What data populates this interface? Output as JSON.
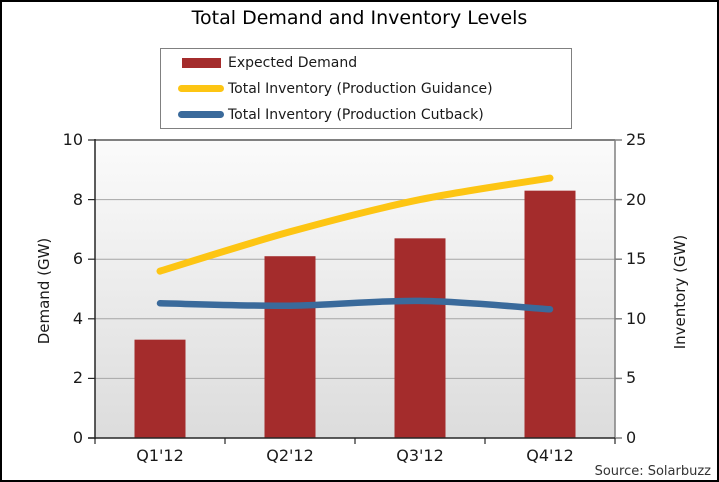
{
  "chart_data": {
    "type": "combo",
    "title": "Total Demand and Inventory Levels",
    "categories": [
      "Q1'12",
      "Q2'12",
      "Q3'12",
      "Q4'12"
    ],
    "series": [
      {
        "name": "Expected Demand",
        "type": "bar",
        "axis": "left",
        "color": "#A42C2C",
        "values": [
          3.3,
          6.1,
          6.7,
          8.3
        ]
      },
      {
        "name": "Total Inventory (Production Guidance)",
        "type": "line",
        "axis": "right",
        "color": "#FDC513",
        "values": [
          14.0,
          17.3,
          20.0,
          21.8
        ]
      },
      {
        "name": "Total Inventory (Production Cutback)",
        "type": "line",
        "axis": "right",
        "color": "#3A6A9B",
        "values": [
          11.3,
          11.1,
          11.5,
          10.8
        ]
      }
    ],
    "left_axis": {
      "label": "Demand (GW)",
      "min": 0,
      "max": 10,
      "ticks": [
        0,
        2,
        4,
        6,
        8,
        10
      ]
    },
    "right_axis": {
      "label": "Inventory (GW)",
      "min": 0,
      "max": 25,
      "ticks": [
        0,
        5,
        10,
        15,
        20,
        25
      ]
    },
    "legend_position": "top",
    "grid": true,
    "source": "Source: Solarbuzz",
    "colors": {
      "gridline": "#A6A6A6",
      "plot_border": "#808080",
      "axis_line": "#262626",
      "plot_bg_top": "#FBFBFB",
      "plot_bg_bottom": "#DCDCDC"
    }
  }
}
